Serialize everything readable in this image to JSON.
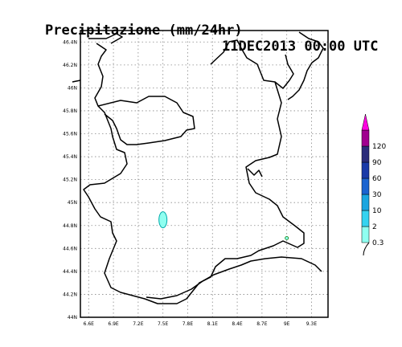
{
  "title": {
    "left": "Precipitazione (mm/24hr)",
    "right": "11DEC2013 00:00 UTC"
  },
  "map": {
    "lon_ticks": [
      "6.6E",
      "6.9E",
      "7.2E",
      "7.5E",
      "7.8E",
      "8.1E",
      "8.4E",
      "8.7E",
      "9E",
      "9.3E"
    ],
    "lat_ticks": [
      "46.4N",
      "46.2N",
      "46N",
      "45.8N",
      "45.6N",
      "45.4N",
      "45.2N",
      "45N",
      "44.8N",
      "44.6N",
      "44.4N",
      "44.2N",
      "44N"
    ],
    "lon_range": [
      6.5,
      9.5
    ],
    "lat_range": [
      44.0,
      46.5
    ],
    "grid": "dotted",
    "shaded_areas": [
      {
        "lon": 7.5,
        "lat": 44.85,
        "category": "0.3-2"
      },
      {
        "lon": 9.0,
        "lat": 44.69,
        "category": "0.3-2"
      }
    ]
  },
  "colorbar": {
    "labels": [
      "0.3",
      "2",
      "10",
      "30",
      "60",
      "90",
      "120"
    ],
    "colors": [
      "#8ffff0",
      "#35d3f0",
      "#1ba6e0",
      "#1b64d0",
      "#1a3aa8",
      "#2b2c7a",
      "#a0008f",
      "#ff00e0"
    ]
  }
}
